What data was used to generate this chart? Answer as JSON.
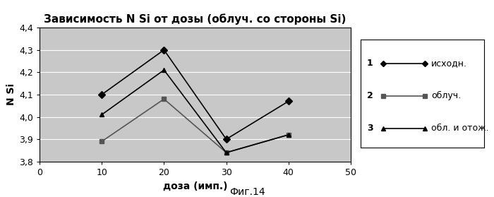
{
  "title": "Зависимость N Si от дозы (облуч. со стороны Si)",
  "xlabel": "доза (имп.)",
  "ylabel": "N Si",
  "caption": "Фиг.14",
  "xlim": [
    0,
    50
  ],
  "ylim": [
    3.8,
    4.4
  ],
  "yticks": [
    3.8,
    3.9,
    4.0,
    4.1,
    4.2,
    4.3,
    4.4
  ],
  "xticks": [
    0,
    10,
    20,
    30,
    40,
    50
  ],
  "plot_bg_color": "#c8c8c8",
  "fig_bg_color": "#ffffff",
  "series": [
    {
      "num": "1",
      "label": "исходн.",
      "x": [
        10,
        20,
        30,
        40
      ],
      "y": [
        4.1,
        4.3,
        3.9,
        4.07
      ],
      "color": "#000000",
      "marker": "D",
      "markersize": 5,
      "linestyle": "-"
    },
    {
      "num": "2",
      "label": "облуч.",
      "x": [
        10,
        20,
        30,
        40
      ],
      "y": [
        3.89,
        4.08,
        3.84,
        3.92
      ],
      "color": "#555555",
      "marker": "s",
      "markersize": 5,
      "linestyle": "-"
    },
    {
      "num": "3",
      "label": "обл. и отож.",
      "x": [
        10,
        20,
        30,
        40
      ],
      "y": [
        4.01,
        4.21,
        3.84,
        3.92
      ],
      "color": "#000000",
      "marker": "^",
      "markersize": 5,
      "linestyle": "-"
    }
  ],
  "title_fontsize": 11,
  "axis_label_fontsize": 10,
  "tick_fontsize": 9,
  "legend_fontsize": 9
}
